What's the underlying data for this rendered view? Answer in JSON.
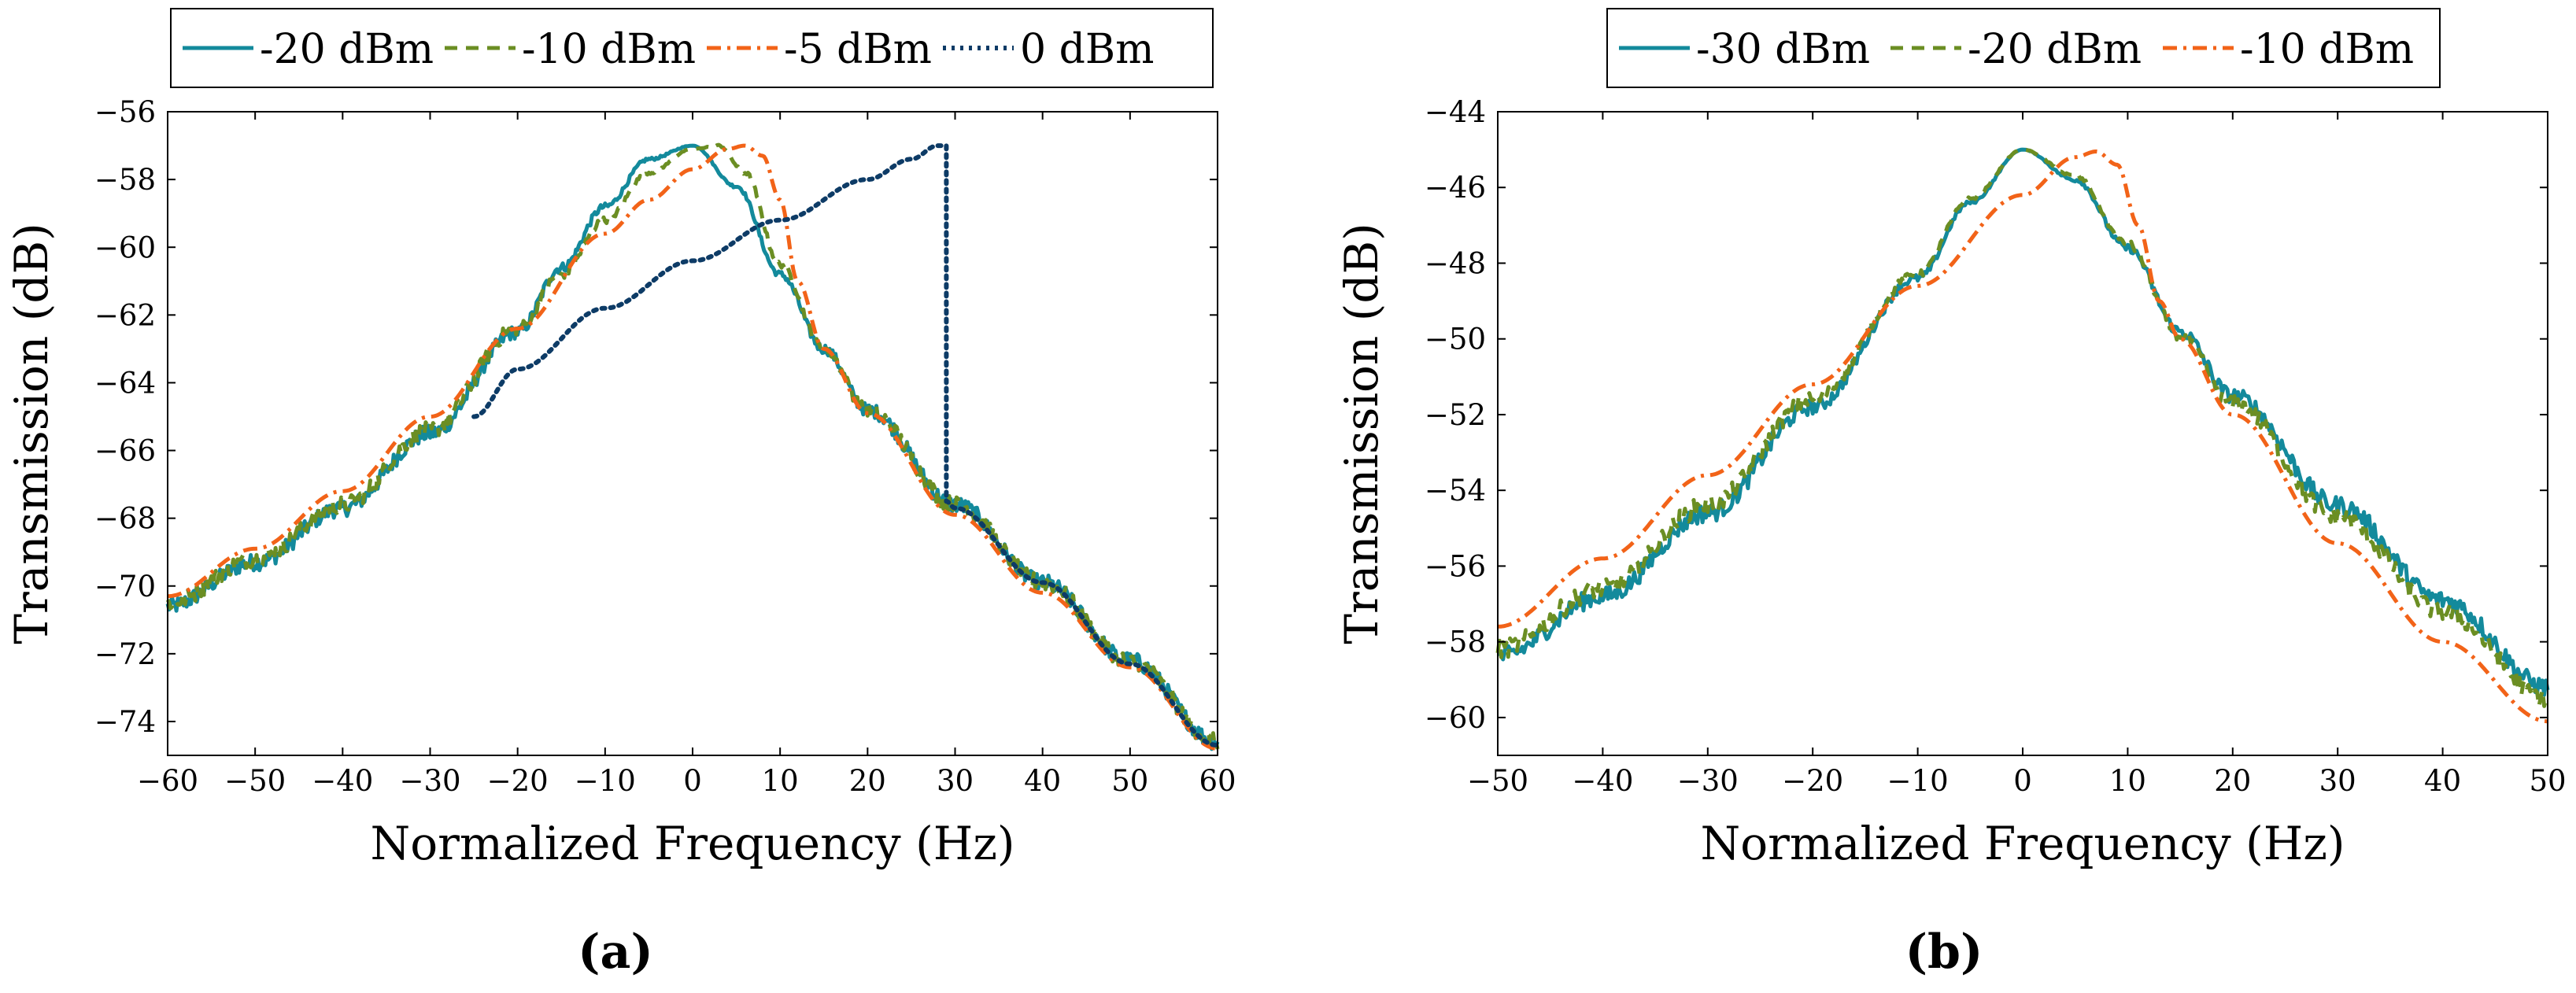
{
  "colors": {
    "teal": "#138a9c",
    "olive": "#6b8e23",
    "orange": "#f26318",
    "navy": "#0d3b66"
  },
  "chart_data": [
    {
      "id": "a",
      "type": "line",
      "panel_label": "(a)",
      "xlabel": "Normalized Frequency (Hz)",
      "ylabel": "Transmission (dB)",
      "xlim": [
        -60,
        60
      ],
      "ylim": [
        -75,
        -56
      ],
      "xticks": [
        -60,
        -50,
        -40,
        -30,
        -20,
        -10,
        0,
        10,
        20,
        30,
        40,
        50,
        60
      ],
      "yticks": [
        -74,
        -72,
        -70,
        -68,
        -66,
        -64,
        -62,
        -60,
        -58,
        -56
      ],
      "xtick_labels": [
        "−60",
        "−50",
        "−40",
        "−30",
        "−20",
        "−10",
        "0",
        "10",
        "20",
        "30",
        "40",
        "50",
        "60"
      ],
      "ytick_labels": [
        "−74",
        "−72",
        "−70",
        "−68",
        "−66",
        "−64",
        "−62",
        "−60",
        "−58",
        "−56"
      ],
      "legend": {
        "placement": "top",
        "entries": [
          "-20 dBm",
          "-10 dBm",
          "-5 dBm",
          "0 dBm"
        ]
      },
      "series": [
        {
          "name": "-20 dBm",
          "style": "solid",
          "color_key": "teal",
          "x": [
            -60,
            -50,
            -40,
            -30,
            -20,
            -15,
            -10,
            -5,
            0,
            5,
            10,
            15,
            20,
            30,
            40,
            50,
            60
          ],
          "y": [
            -70.6,
            -69.3,
            -67.7,
            -65.5,
            -62.5,
            -60.6,
            -58.8,
            -57.4,
            -57.0,
            -58.2,
            -60.8,
            -63.0,
            -64.8,
            -67.6,
            -69.9,
            -72.2,
            -74.6
          ]
        },
        {
          "name": "-10 dBm",
          "style": "dashed",
          "color_key": "olive",
          "x": [
            -60,
            -50,
            -40,
            -30,
            -20,
            -15,
            -10,
            -5,
            0,
            3,
            6,
            10,
            15,
            20,
            30,
            40,
            50,
            60
          ],
          "y": [
            -70.5,
            -69.2,
            -67.6,
            -65.4,
            -62.4,
            -60.8,
            -59.2,
            -57.8,
            -57.1,
            -57.0,
            -57.8,
            -60.5,
            -63.0,
            -64.8,
            -67.6,
            -69.9,
            -72.2,
            -74.6
          ]
        },
        {
          "name": "-5 dBm",
          "style": "dashdot",
          "color_key": "orange",
          "x": [
            -60,
            -50,
            -40,
            -30,
            -20,
            -10,
            -5,
            0,
            4,
            6,
            8,
            10,
            12,
            15,
            20,
            30,
            40,
            50,
            60
          ],
          "y": [
            -70.3,
            -68.9,
            -67.2,
            -65.0,
            -62.4,
            -59.6,
            -58.6,
            -57.7,
            -57.1,
            -57.0,
            -57.3,
            -58.6,
            -61.0,
            -63.0,
            -64.9,
            -67.9,
            -70.2,
            -72.4,
            -74.8
          ]
        },
        {
          "name": "0 dBm",
          "style": "dotted",
          "color_key": "navy",
          "x": [
            -25,
            -20,
            -10,
            0,
            10,
            20,
            25,
            28,
            29,
            29,
            30,
            40,
            50,
            60
          ],
          "y": [
            -65.0,
            -63.6,
            -61.8,
            -60.4,
            -59.2,
            -58.0,
            -57.4,
            -57.0,
            -57.0,
            -67.5,
            -67.7,
            -69.9,
            -72.3,
            -74.7
          ]
        }
      ]
    },
    {
      "id": "b",
      "type": "line",
      "panel_label": "(b)",
      "xlabel": "Normalized Frequency (Hz)",
      "ylabel": "Transmission (dB)",
      "xlim": [
        -50,
        50
      ],
      "ylim": [
        -61,
        -44
      ],
      "xticks": [
        -50,
        -40,
        -30,
        -20,
        -10,
        0,
        10,
        20,
        30,
        40,
        50
      ],
      "yticks": [
        -60,
        -58,
        -56,
        -54,
        -52,
        -50,
        -48,
        -46,
        -44
      ],
      "xtick_labels": [
        "−50",
        "−40",
        "−30",
        "−20",
        "−10",
        "0",
        "10",
        "20",
        "30",
        "40",
        "50"
      ],
      "ytick_labels": [
        "−60",
        "−58",
        "−56",
        "−54",
        "−52",
        "−50",
        "−48",
        "−46",
        "−44"
      ],
      "legend": {
        "placement": "top",
        "entries": [
          "-30 dBm",
          "-20 dBm",
          "-10 dBm"
        ]
      },
      "series": [
        {
          "name": "-30 dBm",
          "style": "solid",
          "color_key": "teal",
          "x": [
            -50,
            -40,
            -30,
            -20,
            -10,
            -5,
            0,
            5,
            10,
            15,
            20,
            30,
            40,
            50
          ],
          "y": [
            -58.4,
            -56.8,
            -54.6,
            -51.8,
            -48.4,
            -46.4,
            -45.0,
            -45.8,
            -47.6,
            -49.8,
            -51.5,
            -54.4,
            -56.9,
            -59.2
          ]
        },
        {
          "name": "-20 dBm",
          "style": "dashed",
          "color_key": "olive",
          "x": [
            -50,
            -40,
            -30,
            -20,
            -10,
            -5,
            0,
            5,
            10,
            15,
            20,
            30,
            40,
            50
          ],
          "y": [
            -58.2,
            -56.6,
            -54.4,
            -51.6,
            -48.3,
            -46.3,
            -45.0,
            -45.7,
            -47.5,
            -49.9,
            -51.7,
            -54.7,
            -57.2,
            -59.5
          ]
        },
        {
          "name": "-10 dBm",
          "style": "dashdot",
          "color_key": "orange",
          "x": [
            -50,
            -40,
            -30,
            -20,
            -10,
            0,
            5,
            7,
            9,
            11,
            13,
            15,
            20,
            30,
            40,
            50
          ],
          "y": [
            -57.6,
            -55.8,
            -53.6,
            -51.2,
            -48.6,
            -46.2,
            -45.2,
            -45.05,
            -45.4,
            -47.0,
            -49.0,
            -50.0,
            -52.0,
            -55.4,
            -58.0,
            -60.1
          ]
        }
      ]
    }
  ]
}
